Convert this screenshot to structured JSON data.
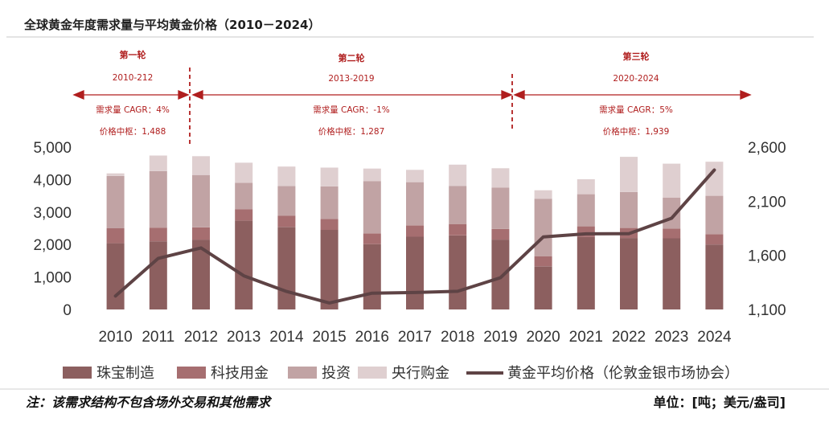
{
  "title": "全球黄金年度需求量与平均黄金价格（2010－2024）",
  "phases": [
    {
      "name": "第一轮",
      "range": "2010-212",
      "cagr": "需求量 CAGR：4%",
      "center": "价格中枢：1,488"
    },
    {
      "name": "第二轮",
      "range": "2013-2019",
      "cagr": "需求量 CAGR：-1%",
      "center": "价格中枢：1,287"
    },
    {
      "name": "第三轮",
      "range": "2020-2024",
      "cagr": "需求量 CAGR：5%",
      "center": "价格中枢：1,939"
    }
  ],
  "note": "注：该需求结构不包含场外交易和其他需求",
  "unit": "单位：[吨；美元/盎司]",
  "colors": {
    "jewelry": "#8c5f5f",
    "tech": "#a66e70",
    "invest": "#c1a3a4",
    "central": "#dfcfd0",
    "price": "#5e4345",
    "phase_red": "#b01e1e"
  },
  "chart_data": {
    "type": "bar",
    "stacked": true,
    "title": "全球黄金年度需求量与平均黄金价格（2010－2024）",
    "categories": [
      "2010",
      "2011",
      "2012",
      "2013",
      "2014",
      "2015",
      "2016",
      "2017",
      "2018",
      "2019",
      "2020",
      "2021",
      "2022",
      "2023",
      "2024"
    ],
    "series": [
      {
        "name": "珠宝制造",
        "axis": "left",
        "values": [
          2040,
          2100,
          2150,
          2740,
          2540,
          2450,
          2010,
          2240,
          2280,
          2150,
          1330,
          2230,
          2200,
          2190,
          2000
        ]
      },
      {
        "name": "科技用金",
        "axis": "left",
        "values": [
          460,
          420,
          380,
          350,
          350,
          340,
          330,
          350,
          350,
          330,
          310,
          330,
          310,
          300,
          320
        ]
      },
      {
        "name": "投资",
        "axis": "left",
        "values": [
          1610,
          1740,
          1610,
          810,
          910,
          1000,
          1610,
          1330,
          1170,
          1270,
          1770,
          990,
          1110,
          950,
          1180
        ]
      },
      {
        "name": "央行购金",
        "axis": "left",
        "values": [
          80,
          480,
          580,
          620,
          600,
          580,
          390,
          380,
          660,
          600,
          260,
          460,
          1080,
          1050,
          1050
        ]
      },
      {
        "name": "黄金平均价格（伦敦金银市场协会）",
        "axis": "right",
        "type": "line",
        "values": [
          1225,
          1572,
          1669,
          1411,
          1266,
          1160,
          1251,
          1257,
          1268,
          1393,
          1770,
          1799,
          1800,
          1943,
          2388
        ]
      }
    ],
    "y_left": {
      "min": 0,
      "max": 5000,
      "ticks": [
        "0",
        "1,000",
        "2,000",
        "3,000",
        "4,000",
        "5,000"
      ]
    },
    "y_right": {
      "min": 1100,
      "max": 2600,
      "ticks": [
        "1,100",
        "1,600",
        "2,100",
        "2,600"
      ]
    },
    "legend": [
      "珠宝制造",
      "科技用金",
      "投资",
      "央行购金",
      "黄金平均价格（伦敦金银市场协会）"
    ],
    "legend_position": "bottom"
  }
}
